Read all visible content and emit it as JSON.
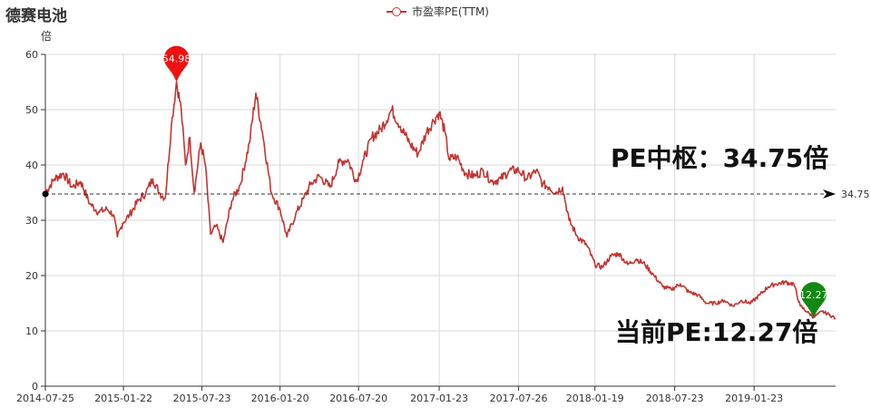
{
  "chart_data": {
    "type": "line",
    "title": "德赛电池",
    "ylabel": "倍",
    "legend": "市盈率PE(TTM)",
    "x_ticks": [
      "2014-07-25",
      "2015-01-22",
      "2015-07-23",
      "2016-01-20",
      "2016-07-20",
      "2017-01-23",
      "2017-07-26",
      "2018-01-19",
      "2018-07-23",
      "2019-01-23"
    ],
    "ylim": [
      0,
      60
    ],
    "y_ticks": [
      0,
      10,
      20,
      30,
      40,
      50,
      60
    ],
    "grid": true,
    "series": [
      {
        "name": "市盈率PE(TTM)",
        "color": "#c23531",
        "points": [
          [
            "2014-07-25",
            35.0
          ],
          [
            "2014-08-15",
            37.5
          ],
          [
            "2014-09-05",
            38.5
          ],
          [
            "2014-09-25",
            36.0
          ],
          [
            "2014-10-15",
            37.0
          ],
          [
            "2014-11-05",
            33.0
          ],
          [
            "2014-11-25",
            31.5
          ],
          [
            "2014-12-15",
            32.0
          ],
          [
            "2014-12-30",
            31.0
          ],
          [
            "2015-01-08",
            27.0
          ],
          [
            "2015-01-20",
            29.5
          ],
          [
            "2015-02-05",
            31.0
          ],
          [
            "2015-02-25",
            33.5
          ],
          [
            "2015-03-15",
            35.0
          ],
          [
            "2015-03-31",
            37.5
          ],
          [
            "2015-04-15",
            35.0
          ],
          [
            "2015-04-29",
            34.0
          ],
          [
            "2015-05-13",
            47.0
          ],
          [
            "2015-05-25",
            55.0
          ],
          [
            "2015-06-05",
            50.0
          ],
          [
            "2015-06-15",
            40.0
          ],
          [
            "2015-06-25",
            45.0
          ],
          [
            "2015-07-05",
            35.0
          ],
          [
            "2015-07-20",
            44.0
          ],
          [
            "2015-07-31",
            40.0
          ],
          [
            "2015-08-12",
            27.5
          ],
          [
            "2015-08-25",
            29.0
          ],
          [
            "2015-09-10",
            26.0
          ],
          [
            "2015-09-30",
            33.5
          ],
          [
            "2015-10-20",
            36.5
          ],
          [
            "2015-11-10",
            44.0
          ],
          [
            "2015-11-25",
            53.0
          ],
          [
            "2015-12-10",
            46.0
          ],
          [
            "2015-12-31",
            35.0
          ],
          [
            "2016-01-20",
            32.0
          ],
          [
            "2016-02-05",
            27.0
          ],
          [
            "2016-02-25",
            31.0
          ],
          [
            "2016-03-15",
            34.0
          ],
          [
            "2016-03-31",
            36.5
          ],
          [
            "2016-04-20",
            38.0
          ],
          [
            "2016-05-15",
            36.0
          ],
          [
            "2016-06-05",
            40.5
          ],
          [
            "2016-06-25",
            41.0
          ],
          [
            "2016-07-15",
            37.0
          ],
          [
            "2016-08-01",
            41.0
          ],
          [
            "2016-08-20",
            45.0
          ],
          [
            "2016-09-10",
            46.5
          ],
          [
            "2016-10-05",
            50.0
          ],
          [
            "2016-10-25",
            47.0
          ],
          [
            "2016-11-15",
            44.0
          ],
          [
            "2016-12-05",
            42.0
          ],
          [
            "2016-12-25",
            46.0
          ],
          [
            "2017-01-10",
            48.0
          ],
          [
            "2017-01-23",
            49.5
          ],
          [
            "2017-02-05",
            46.0
          ],
          [
            "2017-02-15",
            41.0
          ],
          [
            "2017-03-05",
            41.5
          ],
          [
            "2017-03-25",
            38.5
          ],
          [
            "2017-04-15",
            38.0
          ],
          [
            "2017-05-05",
            39.0
          ],
          [
            "2017-05-25",
            37.0
          ],
          [
            "2017-06-15",
            37.5
          ],
          [
            "2017-07-05",
            39.0
          ],
          [
            "2017-07-26",
            39.0
          ],
          [
            "2017-08-15",
            37.5
          ],
          [
            "2017-09-05",
            39.0
          ],
          [
            "2017-09-20",
            36.5
          ],
          [
            "2017-10-05",
            36.0
          ],
          [
            "2017-10-20",
            35.0
          ],
          [
            "2017-11-05",
            36.0
          ],
          [
            "2017-11-20",
            30.0
          ],
          [
            "2017-12-10",
            27.0
          ],
          [
            "2017-12-31",
            25.5
          ],
          [
            "2018-01-19",
            22.0
          ],
          [
            "2018-02-05",
            21.5
          ],
          [
            "2018-02-25",
            23.5
          ],
          [
            "2018-03-15",
            24.0
          ],
          [
            "2018-04-05",
            22.0
          ],
          [
            "2018-04-25",
            23.0
          ],
          [
            "2018-05-15",
            22.0
          ],
          [
            "2018-06-05",
            20.0
          ],
          [
            "2018-06-25",
            18.0
          ],
          [
            "2018-07-15",
            17.5
          ],
          [
            "2018-08-05",
            18.5
          ],
          [
            "2018-08-25",
            17.0
          ],
          [
            "2018-09-15",
            16.5
          ],
          [
            "2018-10-05",
            15.0
          ],
          [
            "2018-10-25",
            15.0
          ],
          [
            "2018-11-15",
            15.5
          ],
          [
            "2018-12-05",
            14.5
          ],
          [
            "2018-12-25",
            15.5
          ],
          [
            "2019-01-15",
            15.0
          ],
          [
            "2019-02-05",
            16.5
          ],
          [
            "2019-02-25",
            18.0
          ],
          [
            "2019-03-15",
            18.5
          ],
          [
            "2019-04-05",
            18.8
          ],
          [
            "2019-04-25",
            18.5
          ],
          [
            "2019-05-10",
            14.5
          ],
          [
            "2019-05-25",
            13.5
          ],
          [
            "2019-06-10",
            12.5
          ],
          [
            "2019-06-30",
            13.5
          ],
          [
            "2019-07-15",
            13.0
          ],
          [
            "2019-07-31",
            12.27
          ]
        ]
      }
    ],
    "median_line": {
      "value": 34.75,
      "label": "34.75"
    },
    "markers": [
      {
        "type": "max",
        "date": "2015-05-25",
        "value": 54.98,
        "label": "54.98",
        "color": "#ee1111"
      },
      {
        "type": "current",
        "date": "2019-06-10",
        "value": 12.27,
        "label": "12.27",
        "color": "#118811"
      }
    ],
    "annotations": {
      "median_text": "PE中枢：34.75倍",
      "current_text": "当前PE:12.27倍"
    }
  }
}
